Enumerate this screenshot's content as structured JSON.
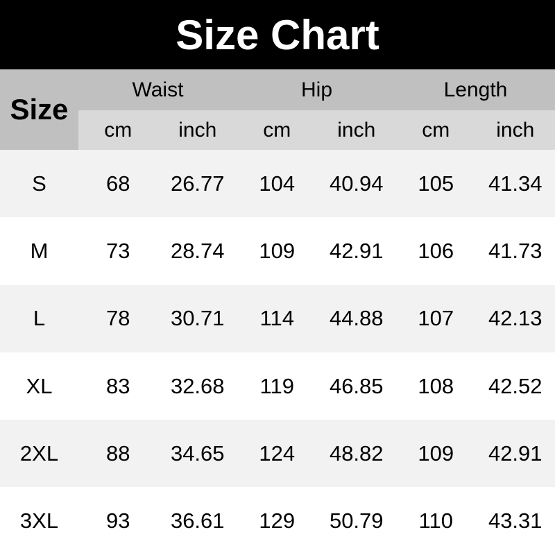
{
  "title": "Size Chart",
  "header": {
    "size_label": "Size",
    "groups": [
      "Waist",
      "Hip",
      "Length"
    ],
    "units": [
      "cm",
      "inch",
      "cm",
      "inch",
      "cm",
      "inch"
    ]
  },
  "rows": [
    [
      "S",
      "68",
      "26.77",
      "104",
      "40.94",
      "105",
      "41.34"
    ],
    [
      "M",
      "73",
      "28.74",
      "109",
      "42.91",
      "106",
      "41.73"
    ],
    [
      "L",
      "78",
      "30.71",
      "114",
      "44.88",
      "107",
      "42.13"
    ],
    [
      "XL",
      "83",
      "32.68",
      "119",
      "46.85",
      "108",
      "42.52"
    ],
    [
      "2XL",
      "88",
      "34.65",
      "124",
      "48.82",
      "109",
      "42.91"
    ],
    [
      "3XL",
      "93",
      "36.61",
      "129",
      "50.79",
      "110",
      "43.31"
    ]
  ],
  "colors": {
    "title_bg": "#000000",
    "header_bg": "#c0c0c0",
    "unit_bg": "#d9d9d9",
    "row_alt_bg": "#f2f2f2"
  }
}
